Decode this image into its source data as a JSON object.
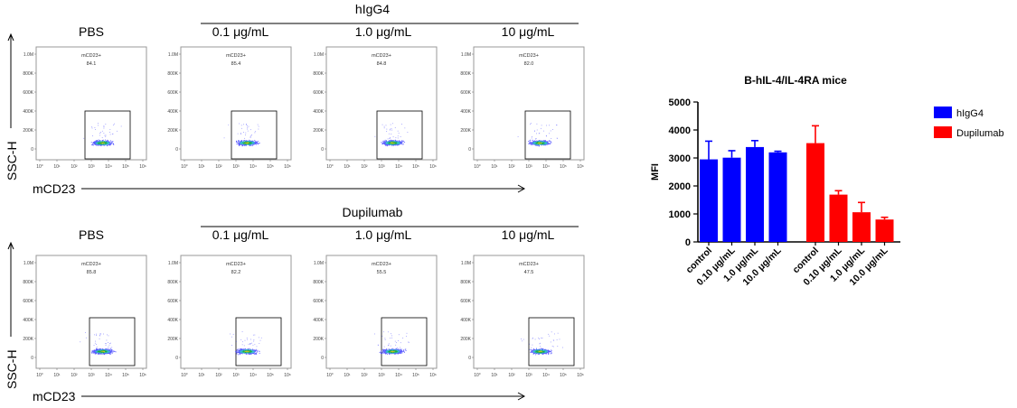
{
  "colors": {
    "hlgg4": "#0000ff",
    "dupilumab": "#ff0000"
  },
  "flow": {
    "y_axis_label": "SSC-H",
    "x_axis_label": "mCD23",
    "gate_label": "mCD23+",
    "y_ticks": [
      "1.0M",
      "800K",
      "600K",
      "400K",
      "200K",
      "0"
    ],
    "x_ticks": [
      "10°",
      "10¹",
      "10²",
      "10³",
      "10⁴",
      "10⁵",
      "10⁶"
    ],
    "rows": [
      {
        "group_label": "hIgG4",
        "columns": [
          {
            "label": "PBS",
            "gate_value": "84.1"
          },
          {
            "label": "0.1 μg/mL",
            "gate_value": "85.4"
          },
          {
            "label": "1.0 μg/mL",
            "gate_value": "84.8"
          },
          {
            "label": "10 μg/mL",
            "gate_value": "82.0"
          }
        ]
      },
      {
        "group_label": "Dupilumab",
        "columns": [
          {
            "label": "PBS",
            "gate_value": "85.8"
          },
          {
            "label": "0.1 μg/mL",
            "gate_value": "82.2"
          },
          {
            "label": "1.0 μg/mL",
            "gate_value": "55.5"
          },
          {
            "label": "10 μg/mL",
            "gate_value": "47.5"
          }
        ]
      }
    ]
  },
  "chart_data": {
    "type": "bar",
    "title": "B-hIL-4/IL-4RA mice",
    "ylabel": "MFI",
    "xlabel": "",
    "ylim": [
      0,
      5000
    ],
    "y_ticks": [
      0,
      1000,
      2000,
      3000,
      4000,
      5000
    ],
    "grid": false,
    "legend_position": "right",
    "series": [
      {
        "name": "hIgG4",
        "color": "#0000ff",
        "categories": [
          "control",
          "0.10 μg/mL",
          "1.0 μg/mL",
          "10.0 μg/mL"
        ],
        "values": [
          2950,
          3010,
          3390,
          3200
        ],
        "errors": [
          650,
          250,
          230,
          40
        ]
      },
      {
        "name": "Dupilumab",
        "color": "#ff0000",
        "categories": [
          "control",
          "0.10 μg/mL",
          "1.0 μg/mL",
          "10.0 μg/mL"
        ],
        "values": [
          3530,
          1690,
          1060,
          800
        ],
        "errors": [
          620,
          140,
          350,
          80
        ]
      }
    ]
  }
}
